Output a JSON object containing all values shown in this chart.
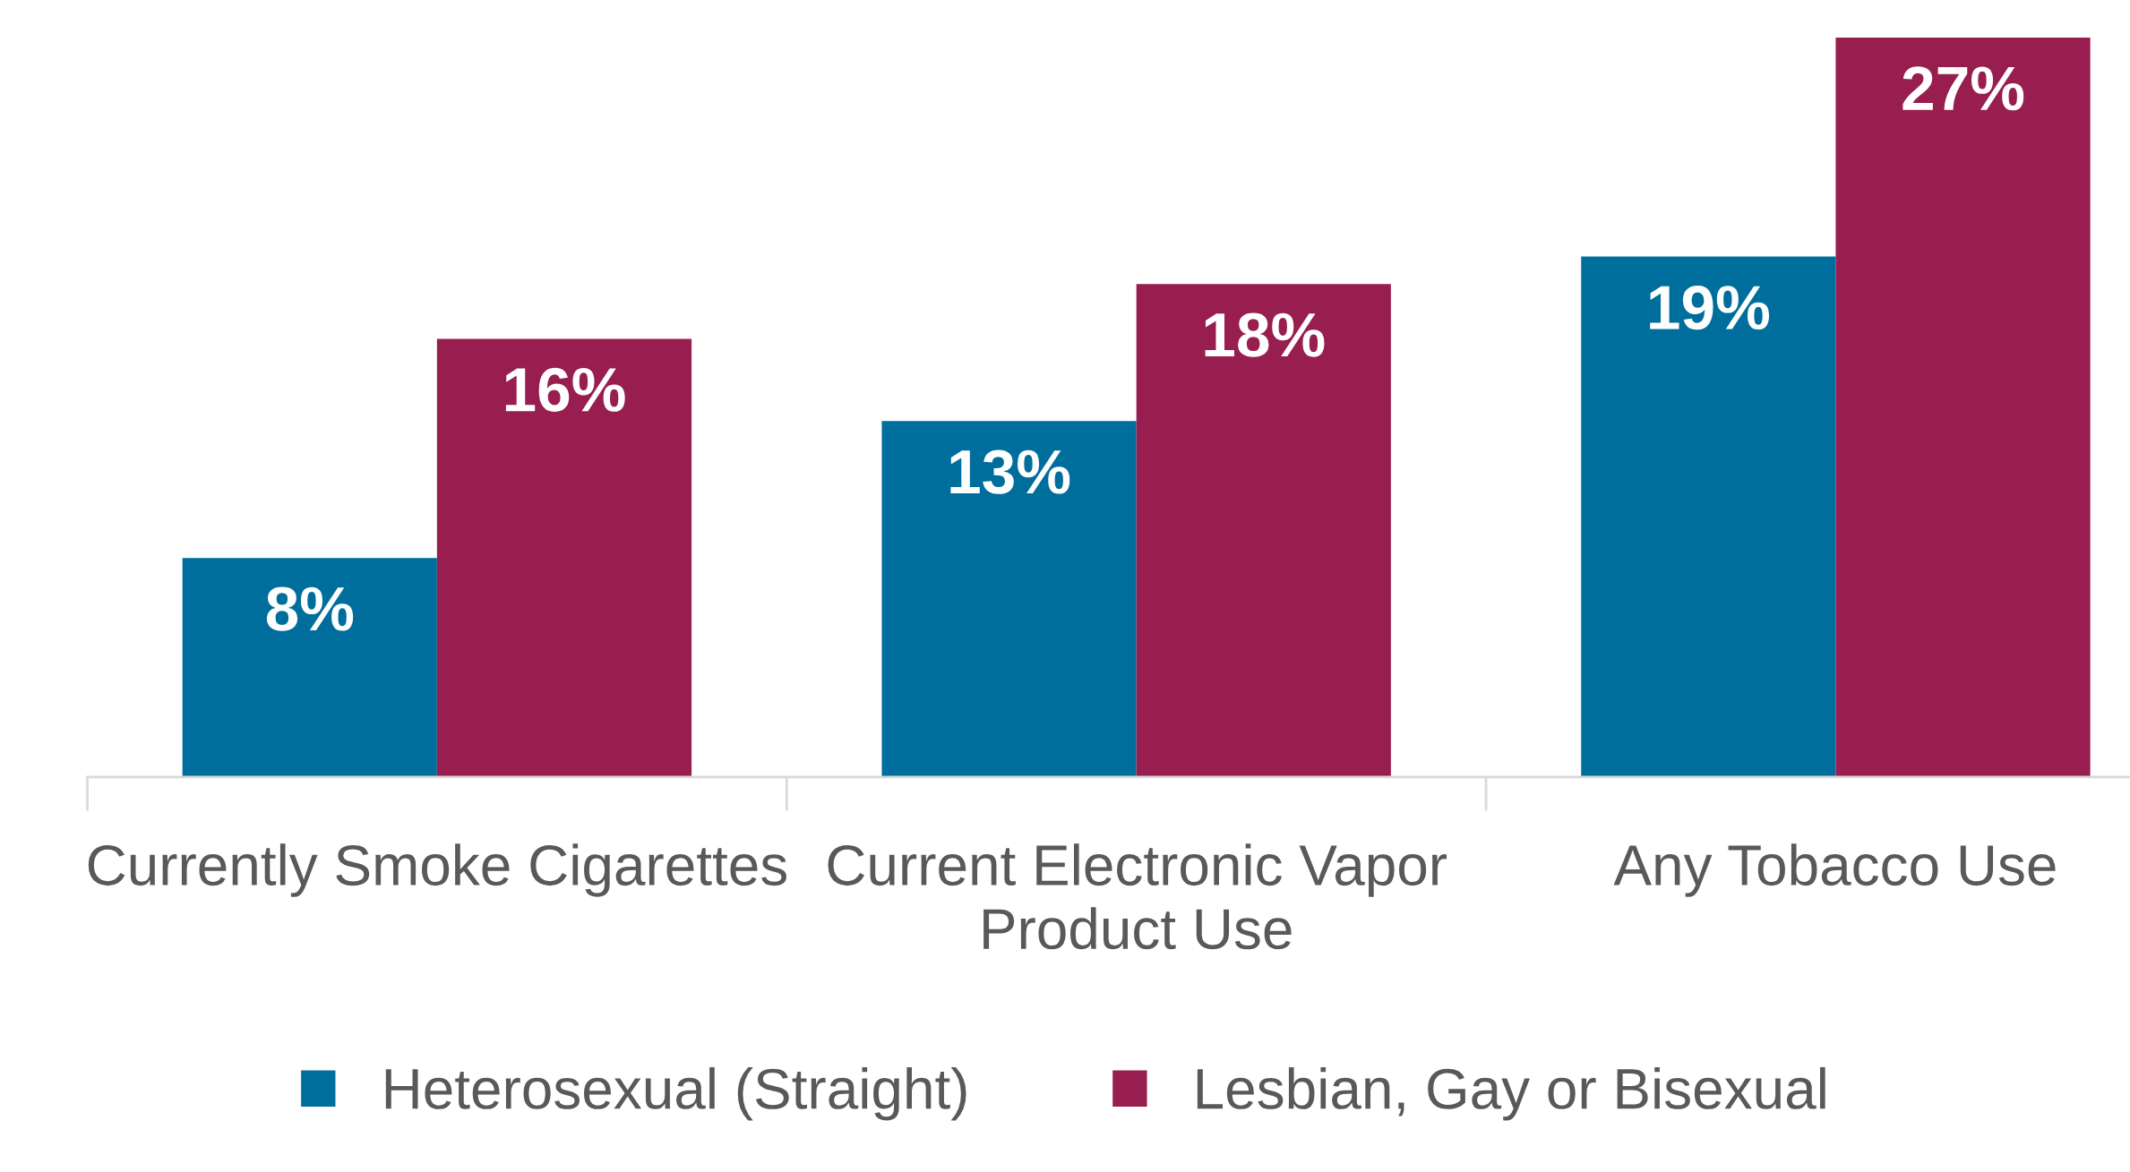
{
  "chart_data": {
    "type": "bar",
    "categories": [
      "Currently Smoke Cigarettes",
      "Current Electronic Vapor Product Use",
      "Any Tobacco Use"
    ],
    "series": [
      {
        "name": "Heterosexual (Straight)",
        "color": "#006e9c",
        "values": [
          8,
          13,
          19
        ],
        "value_labels": [
          "8%",
          "13%",
          "19%"
        ]
      },
      {
        "name": "Lesbian, Gay or Bisexual",
        "color": "#981e4f",
        "values": [
          16,
          18,
          27
        ],
        "value_labels": [
          "16%",
          "18%",
          "27%"
        ]
      }
    ],
    "grid": false,
    "legend": "bottom"
  }
}
